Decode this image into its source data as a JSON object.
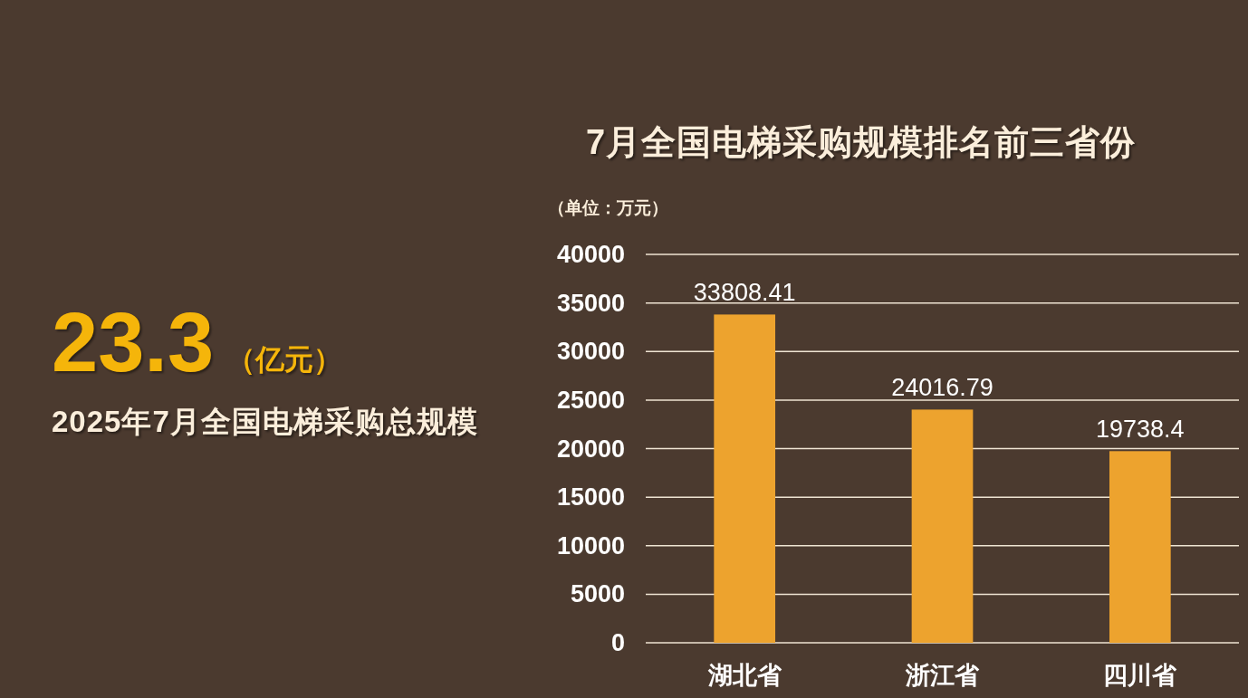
{
  "chart_data": [
    {
      "type": "other",
      "title": "2025年7月全国电梯采购总规模",
      "annotations": [
        "23.3",
        "（亿元）"
      ]
    },
    {
      "type": "bar",
      "title": "7月全国电梯采购规模排名前三省份",
      "ylabel": "（单位：万元）",
      "categories": [
        "湖北省",
        "浙江省",
        "四川省"
      ],
      "values": [
        33808.41,
        24016.79,
        19738.4
      ],
      "color": "#eda32e",
      "ylim": [
        0,
        40000
      ],
      "yticks": [
        0,
        5000,
        10000,
        15000,
        20000,
        25000,
        30000,
        35000,
        40000
      ],
      "grid": "y",
      "data_labels": true
    }
  ]
}
